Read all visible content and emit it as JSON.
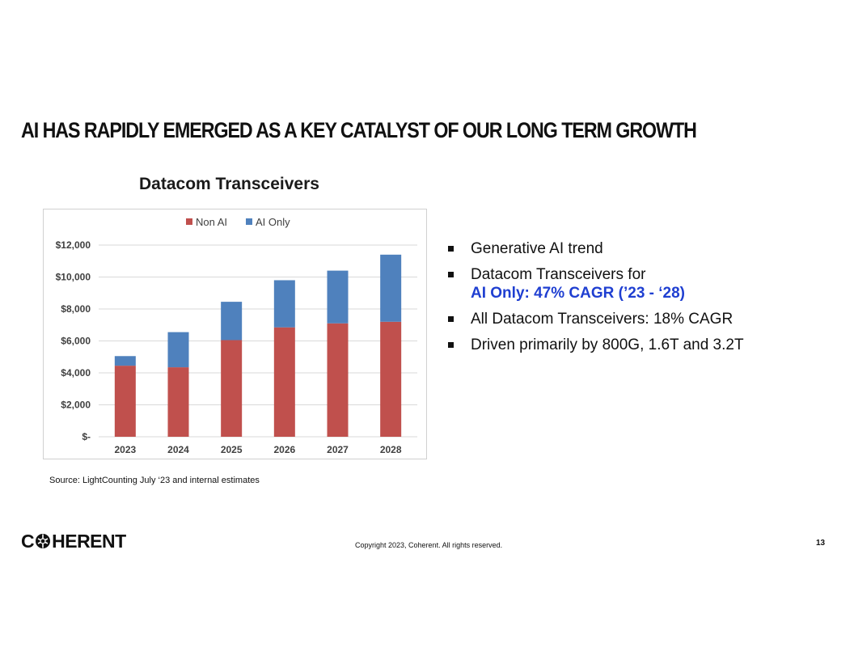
{
  "headline": "AI HAS RAPIDLY EMERGED AS A KEY CATALYST OF OUR LONG TERM GROWTH",
  "chart_data": {
    "type": "bar",
    "stacked": true,
    "title": "Datacom Transceivers",
    "categories": [
      "2023",
      "2024",
      "2025",
      "2026",
      "2027",
      "2028"
    ],
    "series": [
      {
        "name": "Non AI",
        "color": "#c0504d",
        "values": [
          4450,
          4350,
          6050,
          6850,
          7100,
          7200
        ]
      },
      {
        "name": "AI Only",
        "color": "#4f81bd",
        "values": [
          600,
          2200,
          2400,
          2950,
          3300,
          4200
        ]
      }
    ],
    "ylim": [
      0,
      12000
    ],
    "yticks": [
      0,
      2000,
      4000,
      6000,
      8000,
      10000,
      12000
    ],
    "ytick_labels": [
      "$-",
      "$2,000",
      "$4,000",
      "$6,000",
      "$8,000",
      "$10,000",
      "$12,000"
    ],
    "legend_position": "top-center",
    "grid": true,
    "xlabel": "",
    "ylabel": ""
  },
  "bullets": [
    {
      "text": "Generative AI trend",
      "highlight": ""
    },
    {
      "text": "Datacom Transceivers for",
      "highlight": "AI Only: 47% CAGR (’23 - ‘28)"
    },
    {
      "text": "All Datacom Transceivers: 18% CAGR",
      "highlight": ""
    },
    {
      "text": "Driven primarily by 800G, 1.6T and 3.2T",
      "highlight": ""
    }
  ],
  "source": "Source: LightCounting July ‘23 and internal estimates",
  "logo": {
    "prefix": "C",
    "suffix": "HERENT",
    "icon": "coherent-globe-icon"
  },
  "copyright": "Copyright 2023, Coherent. All rights reserved.",
  "page_number": "13",
  "colors": {
    "highlight": "#1f3fd1",
    "non_ai": "#c0504d",
    "ai_only": "#4f81bd"
  }
}
